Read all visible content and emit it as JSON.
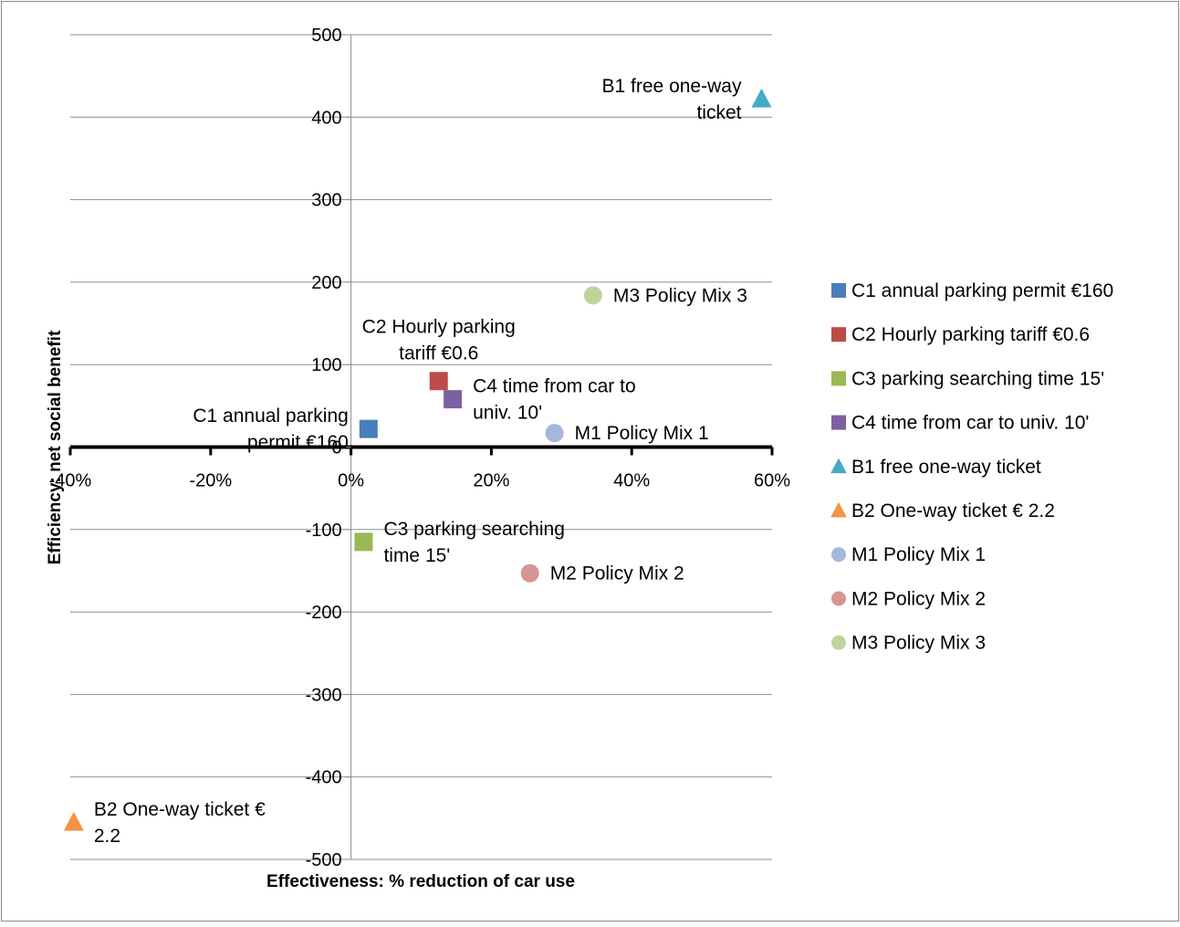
{
  "chart_data": {
    "type": "scatter",
    "title": "",
    "xlabel": "Effectiveness: % reduction of car use",
    "ylabel": "Efficiency: net social benefit",
    "xlim": [
      -0.4,
      0.6
    ],
    "ylim": [
      -500,
      500
    ],
    "x_ticks": [
      -0.4,
      -0.2,
      0,
      0.2,
      0.4,
      0.6
    ],
    "x_tick_labels": [
      "-40%",
      "-20%",
      "0%",
      "20%",
      "40%",
      "60%"
    ],
    "y_ticks": [
      500,
      400,
      300,
      200,
      100,
      0,
      -100,
      -200,
      -300,
      -400,
      -500
    ],
    "y_tick_labels": [
      "500",
      "400",
      "300",
      "200",
      "100",
      "0",
      "-100",
      "-200",
      "-300",
      "-400",
      "-500"
    ],
    "grid": "horizontal",
    "legend_position": "right",
    "series": [
      {
        "name": "C1 annual parking permit €160",
        "marker": "square",
        "color": "#4a7ebb",
        "x": 0.025,
        "y": 22,
        "label_lines": [
          "C1 annual parking",
          "permit €160"
        ],
        "label_position": "left"
      },
      {
        "name": "C2 Hourly parking tariff €0.6",
        "marker": "square",
        "color": "#be4b48",
        "x": 0.125,
        "y": 80,
        "label_lines": [
          "C2 Hourly parking",
          "tariff €0.6"
        ],
        "label_position": "top"
      },
      {
        "name": "C3 parking searching time 15'",
        "marker": "square",
        "color": "#98b954",
        "x": 0.018,
        "y": -115,
        "label_lines": [
          "C3 parking searching",
          "time 15'"
        ],
        "label_position": "right"
      },
      {
        "name": "C4 time from car to univ. 10'",
        "marker": "square",
        "color": "#7d60a0",
        "x": 0.145,
        "y": 58,
        "label_lines": [
          "C4 time from car to",
          "univ. 10'"
        ],
        "label_position": "right"
      },
      {
        "name": "B1 free one-way ticket",
        "marker": "triangle",
        "color": "#46aac5",
        "x": 0.585,
        "y": 422,
        "label_lines": [
          "B1 free one-way",
          "ticket"
        ],
        "label_position": "left"
      },
      {
        "name": "B2 One-way ticket € 2.2",
        "marker": "triangle",
        "color": "#f69240",
        "x": -0.395,
        "y": -455,
        "label_lines": [
          "B2 One-way ticket €",
          "2.2"
        ],
        "label_position": "right"
      },
      {
        "name": "M1  Policy Mix 1",
        "marker": "circle",
        "color": "#a6b7dc",
        "x": 0.29,
        "y": 17,
        "label_lines": [
          "M1  Policy Mix 1"
        ],
        "label_position": "right"
      },
      {
        "name": "M2  Policy Mix 2",
        "marker": "circle",
        "color": "#d59593",
        "x": 0.255,
        "y": -153,
        "label_lines": [
          "M2  Policy Mix 2"
        ],
        "label_position": "right"
      },
      {
        "name": "M3  Policy Mix 3",
        "marker": "circle",
        "color": "#bfd49b",
        "x": 0.345,
        "y": 184,
        "label_lines": [
          "M3  Policy Mix 3"
        ],
        "label_position": "right"
      }
    ]
  }
}
